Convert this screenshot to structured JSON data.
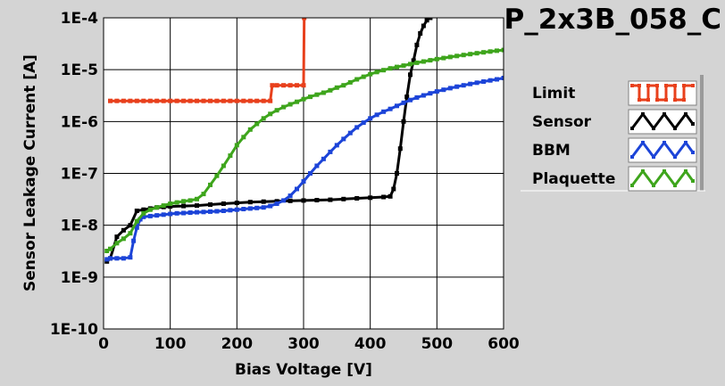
{
  "chart_data": {
    "type": "line",
    "title": "P_2x3B_058_C",
    "xlabel": "Bias Voltage [V]",
    "ylabel": "Sensor Leakage Current [A]",
    "xlim": [
      0,
      600
    ],
    "ylim": [
      1e-10,
      0.0001
    ],
    "yscale": "log",
    "grid": true,
    "legend_position": "right",
    "x_ticks": [
      0,
      100,
      200,
      300,
      400,
      500,
      600
    ],
    "x_tick_labels": [
      "0",
      "100",
      "200",
      "300",
      "400",
      "500",
      "600"
    ],
    "y_ticks": [
      1e-10,
      1e-09,
      1e-08,
      1e-07,
      1e-06,
      1e-05,
      0.0001
    ],
    "y_tick_labels": [
      "1E-10",
      "1E-9",
      "1E-8",
      "1E-7",
      "1E-6",
      "1E-5",
      "1E-4"
    ],
    "series": [
      {
        "name": "Limit",
        "color": "#e8401c",
        "x": [
          10,
          20,
          30,
          40,
          50,
          60,
          70,
          80,
          90,
          100,
          110,
          120,
          130,
          140,
          150,
          160,
          170,
          180,
          190,
          200,
          210,
          220,
          230,
          240,
          250,
          253,
          260,
          270,
          280,
          290,
          300,
          301
        ],
        "y": [
          2.5e-06,
          2.5e-06,
          2.5e-06,
          2.5e-06,
          2.5e-06,
          2.5e-06,
          2.5e-06,
          2.5e-06,
          2.5e-06,
          2.5e-06,
          2.5e-06,
          2.5e-06,
          2.5e-06,
          2.5e-06,
          2.5e-06,
          2.5e-06,
          2.5e-06,
          2.5e-06,
          2.5e-06,
          2.5e-06,
          2.5e-06,
          2.5e-06,
          2.5e-06,
          2.5e-06,
          2.5e-06,
          5e-06,
          5e-06,
          5e-06,
          5e-06,
          5e-06,
          5e-06,
          0.0001
        ]
      },
      {
        "name": "Sensor",
        "color": "#000000",
        "x": [
          5,
          10,
          20,
          30,
          40,
          50,
          60,
          70,
          80,
          90,
          100,
          120,
          140,
          160,
          180,
          200,
          220,
          240,
          260,
          280,
          300,
          320,
          340,
          360,
          380,
          400,
          420,
          430,
          435,
          440,
          445,
          450,
          455,
          460,
          465,
          470,
          475,
          480,
          485,
          490
        ],
        "y": [
          2e-09,
          2.3e-09,
          6e-09,
          8e-09,
          1e-08,
          1.9e-08,
          2e-08,
          2.1e-08,
          2.2e-08,
          2.25e-08,
          2.3e-08,
          2.35e-08,
          2.4e-08,
          2.5e-08,
          2.6e-08,
          2.7e-08,
          2.8e-08,
          2.85e-08,
          2.9e-08,
          2.95e-08,
          3e-08,
          3.05e-08,
          3.1e-08,
          3.2e-08,
          3.3e-08,
          3.4e-08,
          3.5e-08,
          3.6e-08,
          5e-08,
          1e-07,
          3e-07,
          1e-06,
          3e-06,
          8e-06,
          1.5e-05,
          3e-05,
          5e-05,
          7e-05,
          9e-05,
          0.0001
        ]
      },
      {
        "name": "BBM",
        "color": "#1c44d8",
        "x": [
          5,
          10,
          20,
          30,
          40,
          45,
          50,
          55,
          60,
          70,
          80,
          90,
          100,
          110,
          120,
          130,
          140,
          150,
          160,
          170,
          180,
          190,
          200,
          210,
          220,
          230,
          240,
          250,
          260,
          270,
          280,
          290,
          300,
          310,
          320,
          330,
          340,
          350,
          360,
          370,
          380,
          390,
          400,
          410,
          420,
          430,
          440,
          450,
          460,
          470,
          480,
          490,
          500,
          510,
          520,
          530,
          540,
          550,
          560,
          570,
          580,
          590,
          600
        ],
        "y": [
          2.2e-09,
          2.3e-09,
          2.3e-09,
          2.3e-09,
          2.4e-09,
          5e-09,
          9e-09,
          1.3e-08,
          1.45e-08,
          1.5e-08,
          1.55e-08,
          1.6e-08,
          1.65e-08,
          1.7e-08,
          1.72e-08,
          1.75e-08,
          1.78e-08,
          1.8e-08,
          1.83e-08,
          1.86e-08,
          1.9e-08,
          1.95e-08,
          2e-08,
          2.05e-08,
          2.1e-08,
          2.15e-08,
          2.2e-08,
          2.35e-08,
          2.6e-08,
          3e-08,
          3.7e-08,
          5e-08,
          7e-08,
          1e-07,
          1.4e-07,
          1.9e-07,
          2.6e-07,
          3.5e-07,
          4.6e-07,
          6e-07,
          7.7e-07,
          9.5e-07,
          1.15e-06,
          1.35e-06,
          1.55e-06,
          1.75e-06,
          2e-06,
          2.3e-06,
          2.6e-06,
          2.9e-06,
          3.2e-06,
          3.5e-06,
          3.8e-06,
          4.1e-06,
          4.4e-06,
          4.7e-06,
          5e-06,
          5.3e-06,
          5.6e-06,
          5.9e-06,
          6.2e-06,
          6.5e-06,
          6.9e-06
        ]
      },
      {
        "name": "Plaquette",
        "color": "#3ea51c",
        "x": [
          5,
          10,
          20,
          30,
          40,
          50,
          60,
          70,
          80,
          90,
          100,
          110,
          120,
          130,
          140,
          150,
          160,
          170,
          180,
          190,
          200,
          210,
          220,
          230,
          240,
          250,
          260,
          270,
          280,
          290,
          300,
          310,
          320,
          330,
          340,
          350,
          360,
          370,
          380,
          390,
          400,
          410,
          420,
          430,
          440,
          450,
          460,
          470,
          480,
          490,
          500,
          510,
          520,
          530,
          540,
          550,
          560,
          570,
          580,
          590,
          600
        ],
        "y": [
          3.2e-09,
          3.5e-09,
          4.5e-09,
          5.5e-09,
          7e-09,
          1.2e-08,
          1.7e-08,
          2e-08,
          2.2e-08,
          2.4e-08,
          2.6e-08,
          2.75e-08,
          2.9e-08,
          3e-08,
          3.2e-08,
          4e-08,
          6e-08,
          9e-08,
          1.4e-07,
          2.2e-07,
          3.5e-07,
          5e-07,
          7e-07,
          9e-07,
          1.15e-06,
          1.4e-06,
          1.65e-06,
          1.9e-06,
          2.15e-06,
          2.4e-06,
          2.7e-06,
          3e-06,
          3.3e-06,
          3.6e-06,
          4e-06,
          4.5e-06,
          5e-06,
          5.7e-06,
          6.5e-06,
          7.3e-06,
          8.2e-06,
          9e-06,
          9.8e-06,
          1.06e-05,
          1.13e-05,
          1.2e-05,
          1.28e-05,
          1.36e-05,
          1.44e-05,
          1.52e-05,
          1.6e-05,
          1.68e-05,
          1.76e-05,
          1.84e-05,
          1.92e-05,
          2e-05,
          2.08e-05,
          2.16e-05,
          2.24e-05,
          2.32e-05,
          2.4e-05
        ]
      }
    ]
  },
  "legend": {
    "items": [
      {
        "label": "Limit",
        "pattern": "square-wave"
      },
      {
        "label": "Sensor",
        "pattern": "zigzag"
      },
      {
        "label": "BBM",
        "pattern": "zigzag"
      },
      {
        "label": "Plaquette",
        "pattern": "zigzag"
      }
    ]
  }
}
